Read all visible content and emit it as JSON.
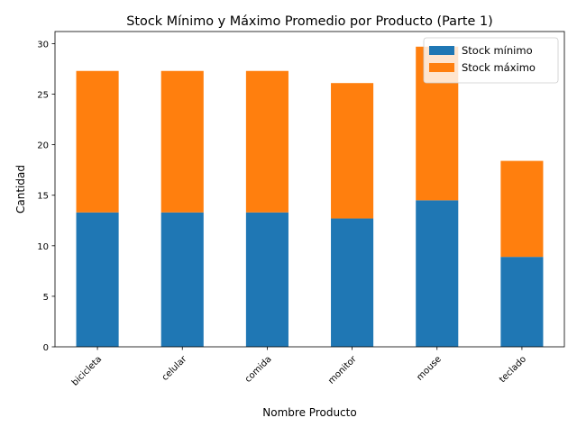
{
  "chart_data": {
    "type": "bar",
    "stacked": true,
    "title": "Stock Mínimo y Máximo Promedio por Producto (Parte 1)",
    "xlabel": "Nombre Producto",
    "ylabel": "Cantidad",
    "categories": [
      "bicicleta",
      "celular",
      "comida",
      "monitor",
      "mouse",
      "teclado"
    ],
    "series": [
      {
        "name": "Stock mínimo",
        "color": "#1f77b4",
        "values": [
          13.3,
          13.3,
          13.3,
          12.7,
          14.5,
          8.9
        ]
      },
      {
        "name": "Stock máximo",
        "color": "#ff7f0e",
        "values": [
          14.0,
          14.0,
          14.0,
          13.4,
          15.2,
          9.5
        ]
      }
    ],
    "ylim": [
      0,
      31.2
    ],
    "yticks": [
      0,
      5,
      10,
      15,
      20,
      25,
      30
    ],
    "grid": false,
    "legend_position": "top-right"
  }
}
